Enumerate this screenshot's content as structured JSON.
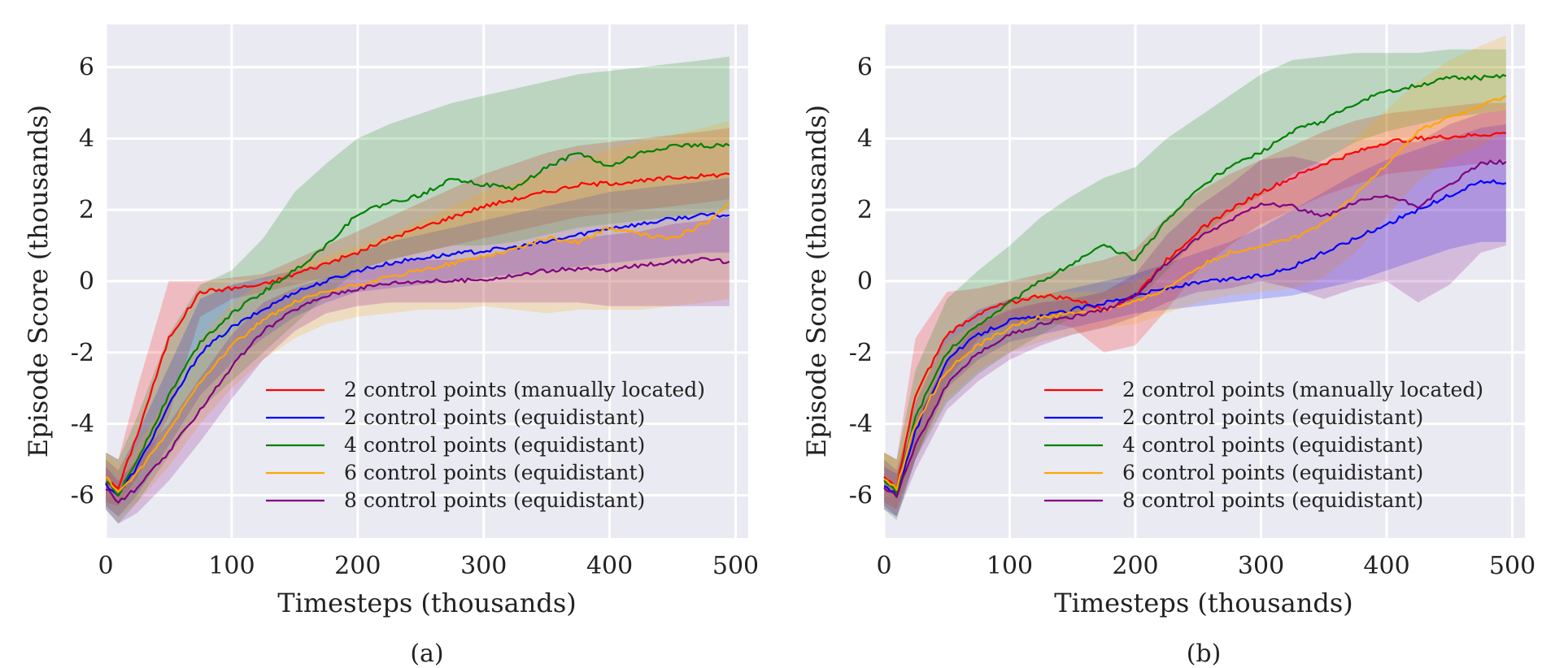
{
  "figure": {
    "background": "#ffffff",
    "plot_background": "#eaeaf2",
    "grid_color": "#ffffff"
  },
  "chart_data": [
    {
      "type": "line",
      "caption": "(a)",
      "xlabel": "Timesteps (thousands)",
      "ylabel": "Episode Score (thousands)",
      "xlim": [
        0,
        510
      ],
      "ylim": [
        -7.2,
        7.2
      ],
      "xticks": [
        0,
        100,
        200,
        300,
        400,
        500
      ],
      "xtick_labels": [
        "0",
        "100",
        "200",
        "300",
        "400",
        "500"
      ],
      "yticks": [
        -6,
        -4,
        -2,
        0,
        2,
        4,
        6
      ],
      "ytick_labels": [
        "-6",
        "-4",
        "-2",
        "0",
        "2",
        "4",
        "6"
      ],
      "grid": true,
      "legend_position": "lower-right",
      "x": [
        0,
        10,
        25,
        50,
        75,
        100,
        125,
        150,
        175,
        200,
        225,
        250,
        275,
        300,
        325,
        350,
        375,
        400,
        425,
        450,
        475,
        495
      ],
      "series": [
        {
          "name": "2 control points (manually located)",
          "color": "#ff0000",
          "values": [
            -5.6,
            -5.8,
            -4.3,
            -1.6,
            -0.3,
            -0.2,
            -0.1,
            0.2,
            0.5,
            0.8,
            1.2,
            1.5,
            1.8,
            2.1,
            2.3,
            2.5,
            2.7,
            2.75,
            2.8,
            2.9,
            2.95,
            3.0
          ],
          "lower": [
            -6.2,
            -6.3,
            -5.5,
            -3.8,
            -1.0,
            -0.5,
            -0.3,
            -0.1,
            0.1,
            0.3,
            0.6,
            0.8,
            1.0,
            1.2,
            1.4,
            1.6,
            1.8,
            1.9,
            2.0,
            2.1,
            2.2,
            2.3
          ],
          "upper": [
            -4.8,
            -5.0,
            -3.0,
            0.0,
            0.0,
            0.1,
            0.2,
            0.6,
            1.0,
            1.4,
            1.8,
            2.2,
            2.6,
            3.0,
            3.3,
            3.6,
            3.8,
            3.9,
            4.0,
            4.1,
            4.2,
            4.3
          ]
        },
        {
          "name": "2 control points (equidistant)",
          "color": "#0000ff",
          "values": [
            -5.7,
            -6.0,
            -5.2,
            -3.5,
            -2.0,
            -1.3,
            -0.8,
            -0.3,
            0.0,
            0.3,
            0.5,
            0.65,
            0.75,
            0.85,
            0.95,
            1.1,
            1.3,
            1.5,
            1.6,
            1.75,
            1.85,
            1.85
          ],
          "lower": [
            -6.3,
            -6.6,
            -6.0,
            -4.6,
            -3.2,
            -2.3,
            -1.6,
            -1.0,
            -0.6,
            -0.3,
            -0.2,
            -0.1,
            0.0,
            0.1,
            0.2,
            0.3,
            0.4,
            0.5,
            0.6,
            0.7,
            0.8,
            0.8
          ],
          "upper": [
            -5.0,
            -5.3,
            -4.3,
            -2.4,
            -0.5,
            -0.1,
            0.1,
            0.3,
            0.5,
            0.8,
            1.1,
            1.3,
            1.5,
            1.7,
            1.9,
            2.1,
            2.3,
            2.5,
            2.6,
            2.7,
            2.8,
            2.9
          ]
        },
        {
          "name": "4 control points (equidistant)",
          "color": "#008000",
          "values": [
            -5.6,
            -6.0,
            -5.0,
            -3.2,
            -1.7,
            -0.9,
            -0.3,
            0.3,
            1.0,
            1.9,
            2.2,
            2.4,
            2.9,
            2.7,
            2.6,
            3.2,
            3.6,
            3.2,
            3.6,
            3.8,
            3.8,
            3.8
          ],
          "lower": [
            -6.4,
            -6.8,
            -6.2,
            -4.9,
            -3.6,
            -2.8,
            -2.0,
            -1.2,
            -0.4,
            0.3,
            0.6,
            0.8,
            1.0,
            1.0,
            1.1,
            1.3,
            1.5,
            1.6,
            1.7,
            1.8,
            1.9,
            2.0
          ],
          "upper": [
            -4.8,
            -5.0,
            -3.8,
            -1.5,
            -0.1,
            0.3,
            1.2,
            2.5,
            3.3,
            4.0,
            4.4,
            4.7,
            5.0,
            5.2,
            5.4,
            5.6,
            5.8,
            5.9,
            6.0,
            6.1,
            6.2,
            6.3
          ]
        },
        {
          "name": "6 control points (equidistant)",
          "color": "#ffa500",
          "values": [
            -5.5,
            -5.9,
            -5.4,
            -4.2,
            -2.8,
            -1.8,
            -1.1,
            -0.6,
            -0.3,
            -0.1,
            0.1,
            0.3,
            0.5,
            0.7,
            0.9,
            1.2,
            1.1,
            1.5,
            1.3,
            1.2,
            1.6,
            2.2
          ],
          "lower": [
            -6.2,
            -6.6,
            -6.2,
            -5.2,
            -4.0,
            -3.0,
            -2.2,
            -1.6,
            -1.2,
            -1.0,
            -0.9,
            -0.8,
            -0.8,
            -0.7,
            -0.8,
            -0.9,
            -0.8,
            -0.8,
            -0.8,
            -0.7,
            -0.6,
            -0.5
          ],
          "upper": [
            -4.9,
            -5.2,
            -4.6,
            -3.2,
            -1.6,
            -0.6,
            0.0,
            0.4,
            0.7,
            1.0,
            1.3,
            1.7,
            2.1,
            2.5,
            2.8,
            3.1,
            3.4,
            3.7,
            3.9,
            4.1,
            4.3,
            4.5
          ]
        },
        {
          "name": "8 control points (equidistant)",
          "color": "#800080",
          "values": [
            -5.8,
            -6.2,
            -5.8,
            -4.8,
            -3.6,
            -2.4,
            -1.4,
            -0.8,
            -0.4,
            -0.2,
            -0.05,
            0.0,
            0.0,
            0.05,
            0.15,
            0.3,
            0.35,
            0.3,
            0.45,
            0.55,
            0.6,
            0.55
          ],
          "lower": [
            -6.4,
            -6.8,
            -6.5,
            -5.6,
            -4.5,
            -3.3,
            -2.2,
            -1.4,
            -0.9,
            -0.7,
            -0.6,
            -0.6,
            -0.6,
            -0.6,
            -0.6,
            -0.6,
            -0.6,
            -0.7,
            -0.7,
            -0.7,
            -0.7,
            -0.7
          ],
          "upper": [
            -5.2,
            -5.6,
            -5.0,
            -4.0,
            -2.7,
            -1.5,
            -0.6,
            -0.2,
            0.1,
            0.3,
            0.5,
            0.6,
            0.6,
            0.7,
            0.9,
            1.1,
            1.2,
            1.3,
            1.4,
            1.6,
            1.7,
            1.8
          ]
        }
      ]
    },
    {
      "type": "line",
      "caption": "(b)",
      "xlabel": "Timesteps (thousands)",
      "ylabel": "Episode Score (thousands)",
      "xlim": [
        0,
        510
      ],
      "ylim": [
        -7.2,
        7.2
      ],
      "xticks": [
        0,
        100,
        200,
        300,
        400,
        500
      ],
      "xtick_labels": [
        "0",
        "100",
        "200",
        "300",
        "400",
        "500"
      ],
      "yticks": [
        -6,
        -4,
        -2,
        0,
        2,
        4,
        6
      ],
      "ytick_labels": [
        "-6",
        "-4",
        "-2",
        "0",
        "2",
        "4",
        "6"
      ],
      "grid": true,
      "legend_position": "lower-right",
      "x": [
        0,
        10,
        25,
        50,
        75,
        100,
        125,
        150,
        175,
        200,
        225,
        250,
        275,
        300,
        325,
        350,
        375,
        400,
        425,
        450,
        475,
        495
      ],
      "series": [
        {
          "name": "2 control points (manually located)",
          "color": "#ff0000",
          "values": [
            -5.5,
            -5.8,
            -3.2,
            -1.5,
            -0.9,
            -0.6,
            -0.4,
            -0.5,
            -0.8,
            -0.4,
            0.6,
            1.4,
            2.0,
            2.5,
            2.9,
            3.3,
            3.6,
            3.9,
            4.0,
            4.05,
            4.1,
            4.15
          ],
          "lower": [
            -6.2,
            -6.4,
            -5.0,
            -2.8,
            -1.6,
            -1.2,
            -1.1,
            -1.3,
            -2.0,
            -1.8,
            -0.8,
            0.3,
            1.0,
            1.6,
            2.0,
            2.4,
            2.7,
            3.0,
            3.1,
            3.2,
            3.3,
            3.4
          ],
          "upper": [
            -4.8,
            -5.0,
            -1.6,
            -0.3,
            -0.2,
            0.0,
            0.2,
            0.4,
            0.6,
            0.9,
            1.8,
            2.5,
            3.0,
            3.4,
            3.8,
            4.2,
            4.5,
            4.7,
            4.8,
            4.9,
            5.0,
            5.0
          ]
        },
        {
          "name": "2 control points (equidistant)",
          "color": "#0000ff",
          "values": [
            -5.7,
            -6.0,
            -4.2,
            -2.2,
            -1.5,
            -1.1,
            -1.0,
            -0.8,
            -0.6,
            -0.4,
            -0.2,
            -0.05,
            0.05,
            0.15,
            0.4,
            0.8,
            1.2,
            1.6,
            2.0,
            2.4,
            2.8,
            2.75
          ],
          "lower": [
            -6.3,
            -6.6,
            -5.0,
            -3.0,
            -2.2,
            -1.7,
            -1.5,
            -1.3,
            -1.1,
            -0.9,
            -0.8,
            -0.7,
            -0.6,
            -0.5,
            -0.4,
            -0.2,
            0.0,
            0.3,
            0.6,
            0.9,
            1.1,
            1.1
          ],
          "upper": [
            -5.0,
            -5.3,
            -3.4,
            -1.5,
            -0.8,
            -0.5,
            -0.4,
            -0.2,
            0.0,
            0.2,
            0.5,
            0.8,
            1.1,
            1.5,
            2.0,
            2.5,
            3.0,
            3.4,
            3.7,
            4.0,
            4.3,
            4.4
          ]
        },
        {
          "name": "4 control points (equidistant)",
          "color": "#008000",
          "values": [
            -5.6,
            -5.9,
            -3.8,
            -2.0,
            -1.2,
            -0.6,
            0.0,
            0.5,
            1.0,
            0.6,
            1.7,
            2.6,
            3.2,
            3.6,
            4.2,
            4.5,
            5.0,
            5.3,
            5.5,
            5.7,
            5.7,
            5.75
          ],
          "lower": [
            -6.4,
            -6.7,
            -5.0,
            -3.4,
            -2.6,
            -2.0,
            -1.5,
            -1.0,
            -0.5,
            -0.6,
            0.3,
            1.2,
            1.9,
            2.4,
            3.0,
            3.4,
            3.9,
            4.2,
            4.4,
            4.6,
            4.7,
            4.8
          ],
          "upper": [
            -4.8,
            -5.0,
            -2.5,
            -0.5,
            0.3,
            1.0,
            1.8,
            2.4,
            2.9,
            3.2,
            4.0,
            4.6,
            5.2,
            5.8,
            6.2,
            6.3,
            6.4,
            6.4,
            6.4,
            6.5,
            6.5,
            6.5
          ]
        },
        {
          "name": "6 control points (equidistant)",
          "color": "#ffa500",
          "values": [
            -5.5,
            -5.8,
            -4.0,
            -2.5,
            -1.8,
            -1.3,
            -1.0,
            -0.9,
            -0.8,
            -0.6,
            -0.2,
            0.4,
            0.8,
            1.0,
            1.2,
            1.6,
            2.4,
            3.3,
            4.2,
            4.6,
            4.9,
            5.2
          ],
          "lower": [
            -6.2,
            -6.5,
            -4.9,
            -3.3,
            -2.5,
            -2.0,
            -1.7,
            -1.5,
            -1.3,
            -1.2,
            -0.9,
            -0.6,
            -0.4,
            -0.3,
            -0.2,
            0.1,
            0.8,
            1.8,
            2.8,
            3.4,
            3.8,
            4.2
          ],
          "upper": [
            -4.8,
            -5.1,
            -3.1,
            -1.7,
            -1.1,
            -0.6,
            -0.3,
            -0.3,
            -0.3,
            0.0,
            0.5,
            1.4,
            2.0,
            2.5,
            2.8,
            3.3,
            4.0,
            4.8,
            5.6,
            6.2,
            6.6,
            6.9
          ]
        },
        {
          "name": "8 control points (equidistant)",
          "color": "#800080",
          "values": [
            -5.8,
            -6.0,
            -4.6,
            -2.9,
            -2.0,
            -1.5,
            -1.2,
            -1.0,
            -0.8,
            -0.4,
            0.5,
            1.2,
            1.7,
            2.2,
            2.1,
            1.8,
            2.2,
            2.4,
            2.1,
            2.7,
            3.3,
            3.35
          ],
          "lower": [
            -6.4,
            -6.6,
            -5.3,
            -3.6,
            -2.8,
            -2.2,
            -1.8,
            -1.5,
            -1.3,
            -1.0,
            -0.6,
            -0.3,
            -0.2,
            0.0,
            -0.2,
            -0.5,
            -0.2,
            0.0,
            -0.6,
            -0.1,
            0.8,
            1.0
          ],
          "upper": [
            -5.2,
            -5.4,
            -3.9,
            -2.2,
            -1.2,
            -0.8,
            -0.6,
            -0.5,
            -0.3,
            0.2,
            1.3,
            2.1,
            2.7,
            3.4,
            3.5,
            3.3,
            3.6,
            3.9,
            3.9,
            4.4,
            4.7,
            4.8
          ]
        }
      ]
    }
  ]
}
